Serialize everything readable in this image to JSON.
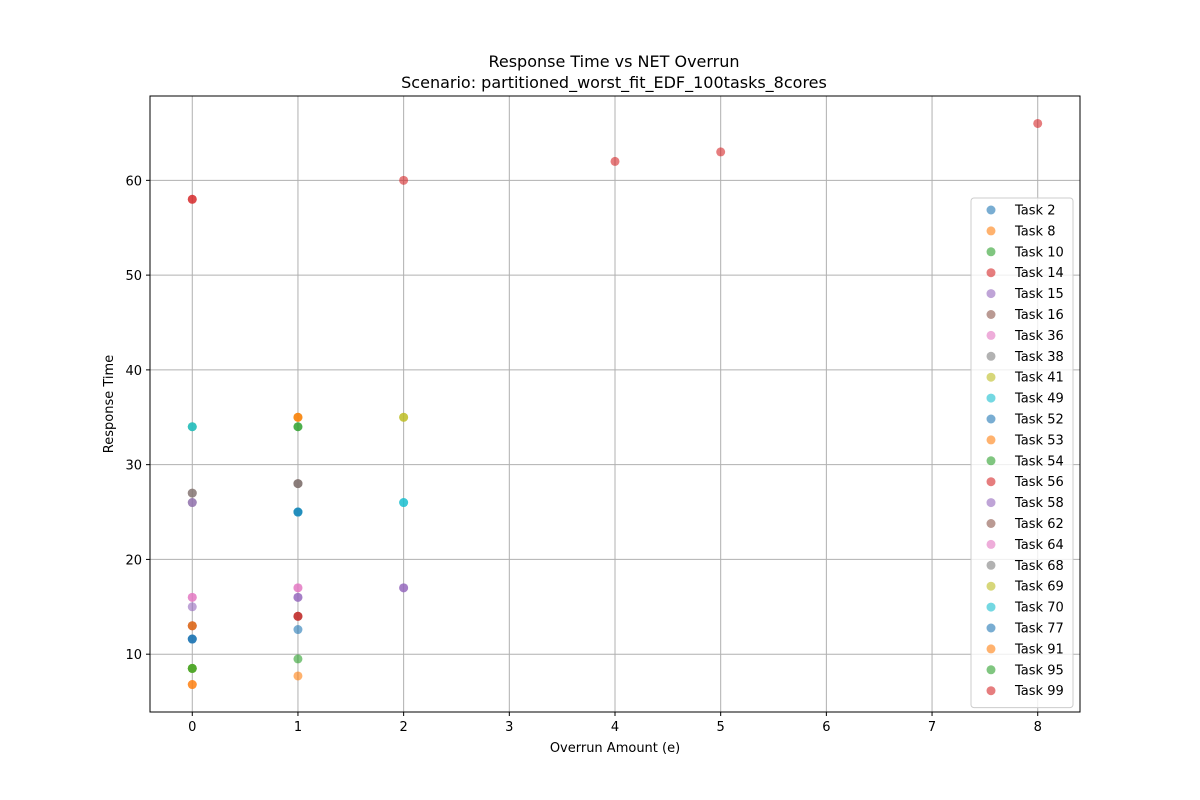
{
  "chart_data": {
    "type": "scatter",
    "title": "Response Time vs NET Overrun",
    "subtitle": "Scenario: partitioned_worst_fit_EDF_100tasks_8cores",
    "xlabel": "Overrun Amount (e)",
    "ylabel": "Response Time",
    "xlim": [
      -0.4,
      8.4
    ],
    "ylim": [
      3.9,
      68.9
    ],
    "xticks": [
      "0",
      "1",
      "2",
      "3",
      "4",
      "5",
      "6",
      "7",
      "8"
    ],
    "yticks": [
      "10",
      "20",
      "30",
      "40",
      "50",
      "60"
    ],
    "grid": true,
    "legend_position": "right",
    "series": [
      {
        "name": "Task 2",
        "color": "#1f77b4",
        "points": [
          [
            0,
            11.6
          ],
          [
            1,
            12.6
          ]
        ]
      },
      {
        "name": "Task 8",
        "color": "#ff7f0e",
        "points": [
          [
            0,
            6.8
          ],
          [
            1,
            7.7
          ]
        ]
      },
      {
        "name": "Task 10",
        "color": "#2ca02c",
        "points": [
          [
            0,
            8.5
          ],
          [
            1,
            9.5
          ]
        ]
      },
      {
        "name": "Task 14",
        "color": "#d62728",
        "points": [
          [
            0,
            13.0
          ],
          [
            1,
            14.0
          ]
        ]
      },
      {
        "name": "Task 15",
        "color": "#9467bd",
        "points": [
          [
            0,
            15.0
          ],
          [
            1,
            16.0
          ],
          [
            2,
            17.0
          ]
        ]
      },
      {
        "name": "Task 16",
        "color": "#8c564b",
        "points": [
          [
            0,
            13.0
          ],
          [
            1,
            14.0
          ]
        ]
      },
      {
        "name": "Task 36",
        "color": "#e377c2",
        "points": [
          [
            0,
            16.0
          ],
          [
            1,
            17.0
          ]
        ]
      },
      {
        "name": "Task 38",
        "color": "#7f7f7f",
        "points": [
          [
            0,
            26.0
          ],
          [
            1,
            28.0
          ]
        ]
      },
      {
        "name": "Task 41",
        "color": "#bcbd22",
        "points": [
          [
            0,
            34.0
          ],
          [
            1,
            35.0
          ],
          [
            2,
            35.0
          ]
        ]
      },
      {
        "name": "Task 49",
        "color": "#17becf",
        "points": [
          [
            0,
            34.0
          ],
          [
            1,
            25.0
          ],
          [
            2,
            26.0
          ]
        ]
      },
      {
        "name": "Task 52",
        "color": "#1f77b4",
        "points": [
          [
            0,
            11.6
          ],
          [
            1,
            25.0
          ]
        ]
      },
      {
        "name": "Task 53",
        "color": "#ff7f0e",
        "points": [
          [
            0,
            6.8
          ],
          [
            1,
            35.0
          ]
        ]
      },
      {
        "name": "Task 54",
        "color": "#2ca02c",
        "points": [
          [
            0,
            8.5
          ],
          [
            1,
            34.0
          ]
        ]
      },
      {
        "name": "Task 56",
        "color": "#d62728",
        "points": [
          [
            0,
            58.0
          ],
          [
            1,
            14.0
          ]
        ]
      },
      {
        "name": "Task 58",
        "color": "#9467bd",
        "points": [
          [
            0,
            26.0
          ],
          [
            1,
            16.0
          ],
          [
            2,
            17.0
          ]
        ]
      },
      {
        "name": "Task 62",
        "color": "#8c564b",
        "points": [
          [
            0,
            27.0
          ],
          [
            1,
            28.0
          ]
        ]
      },
      {
        "name": "Task 64",
        "color": "#e377c2",
        "points": [
          [
            0,
            16.0
          ],
          [
            1,
            17.0
          ]
        ]
      },
      {
        "name": "Task 68",
        "color": "#7f7f7f",
        "points": [
          [
            0,
            27.0
          ],
          [
            1,
            28.0
          ]
        ]
      },
      {
        "name": "Task 69",
        "color": "#bcbd22",
        "points": [
          [
            0,
            8.5
          ],
          [
            2,
            35.0
          ]
        ]
      },
      {
        "name": "Task 70",
        "color": "#17becf",
        "points": [
          [
            0,
            34.0
          ],
          [
            1,
            25.0
          ],
          [
            2,
            26.0
          ]
        ]
      },
      {
        "name": "Task 77",
        "color": "#1f77b4",
        "points": [
          [
            0,
            11.6
          ],
          [
            1,
            25.0
          ]
        ]
      },
      {
        "name": "Task 91",
        "color": "#ff7f0e",
        "points": [
          [
            0,
            13.0
          ],
          [
            1,
            35.0
          ]
        ]
      },
      {
        "name": "Task 95",
        "color": "#2ca02c",
        "points": [
          [
            0,
            8.5
          ],
          [
            1,
            34.0
          ]
        ]
      },
      {
        "name": "Task 99",
        "color": "#d62728",
        "points": [
          [
            0,
            58.0
          ],
          [
            2,
            60.0
          ],
          [
            4,
            62.0
          ],
          [
            5,
            63.0
          ],
          [
            8,
            66.0
          ]
        ]
      }
    ]
  }
}
